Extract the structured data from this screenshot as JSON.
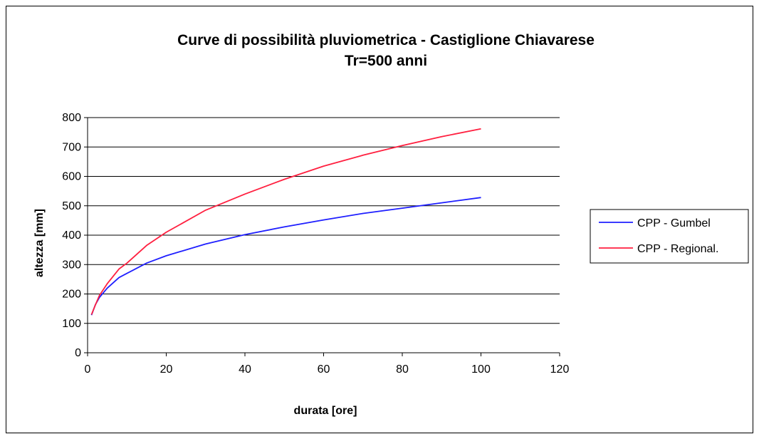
{
  "chart_data": {
    "type": "line",
    "title": "Curve di possibilità pluviometrica - Castiglione Chiavarese",
    "subtitle": "Tr=500 anni",
    "xlabel": "durata [ore]",
    "ylabel": "altezza [mm]",
    "xlim": [
      0,
      120
    ],
    "ylim": [
      0,
      800
    ],
    "xticks": [
      0,
      20,
      40,
      60,
      80,
      100,
      120
    ],
    "yticks": [
      0,
      100,
      200,
      300,
      400,
      500,
      600,
      700,
      800
    ],
    "grid": "horizontal",
    "legend_position": "right",
    "series": [
      {
        "name": "CPP - Gumbel",
        "color": "#1f1fff",
        "x": [
          1,
          2,
          3,
          5,
          8,
          10,
          15,
          20,
          30,
          40,
          50,
          60,
          70,
          80,
          90,
          100
        ],
        "y": [
          128,
          164,
          188,
          220,
          256,
          270,
          305,
          330,
          370,
          402,
          428,
          452,
          474,
          492,
          510,
          528
        ]
      },
      {
        "name": "CPP - Regional.",
        "color": "#ff1f3f",
        "x": [
          1,
          2,
          3,
          5,
          8,
          10,
          15,
          20,
          30,
          40,
          50,
          60,
          70,
          80,
          90,
          100
        ],
        "y": [
          130,
          163,
          195,
          235,
          285,
          305,
          365,
          410,
          485,
          540,
          590,
          635,
          672,
          705,
          735,
          762
        ]
      }
    ]
  }
}
